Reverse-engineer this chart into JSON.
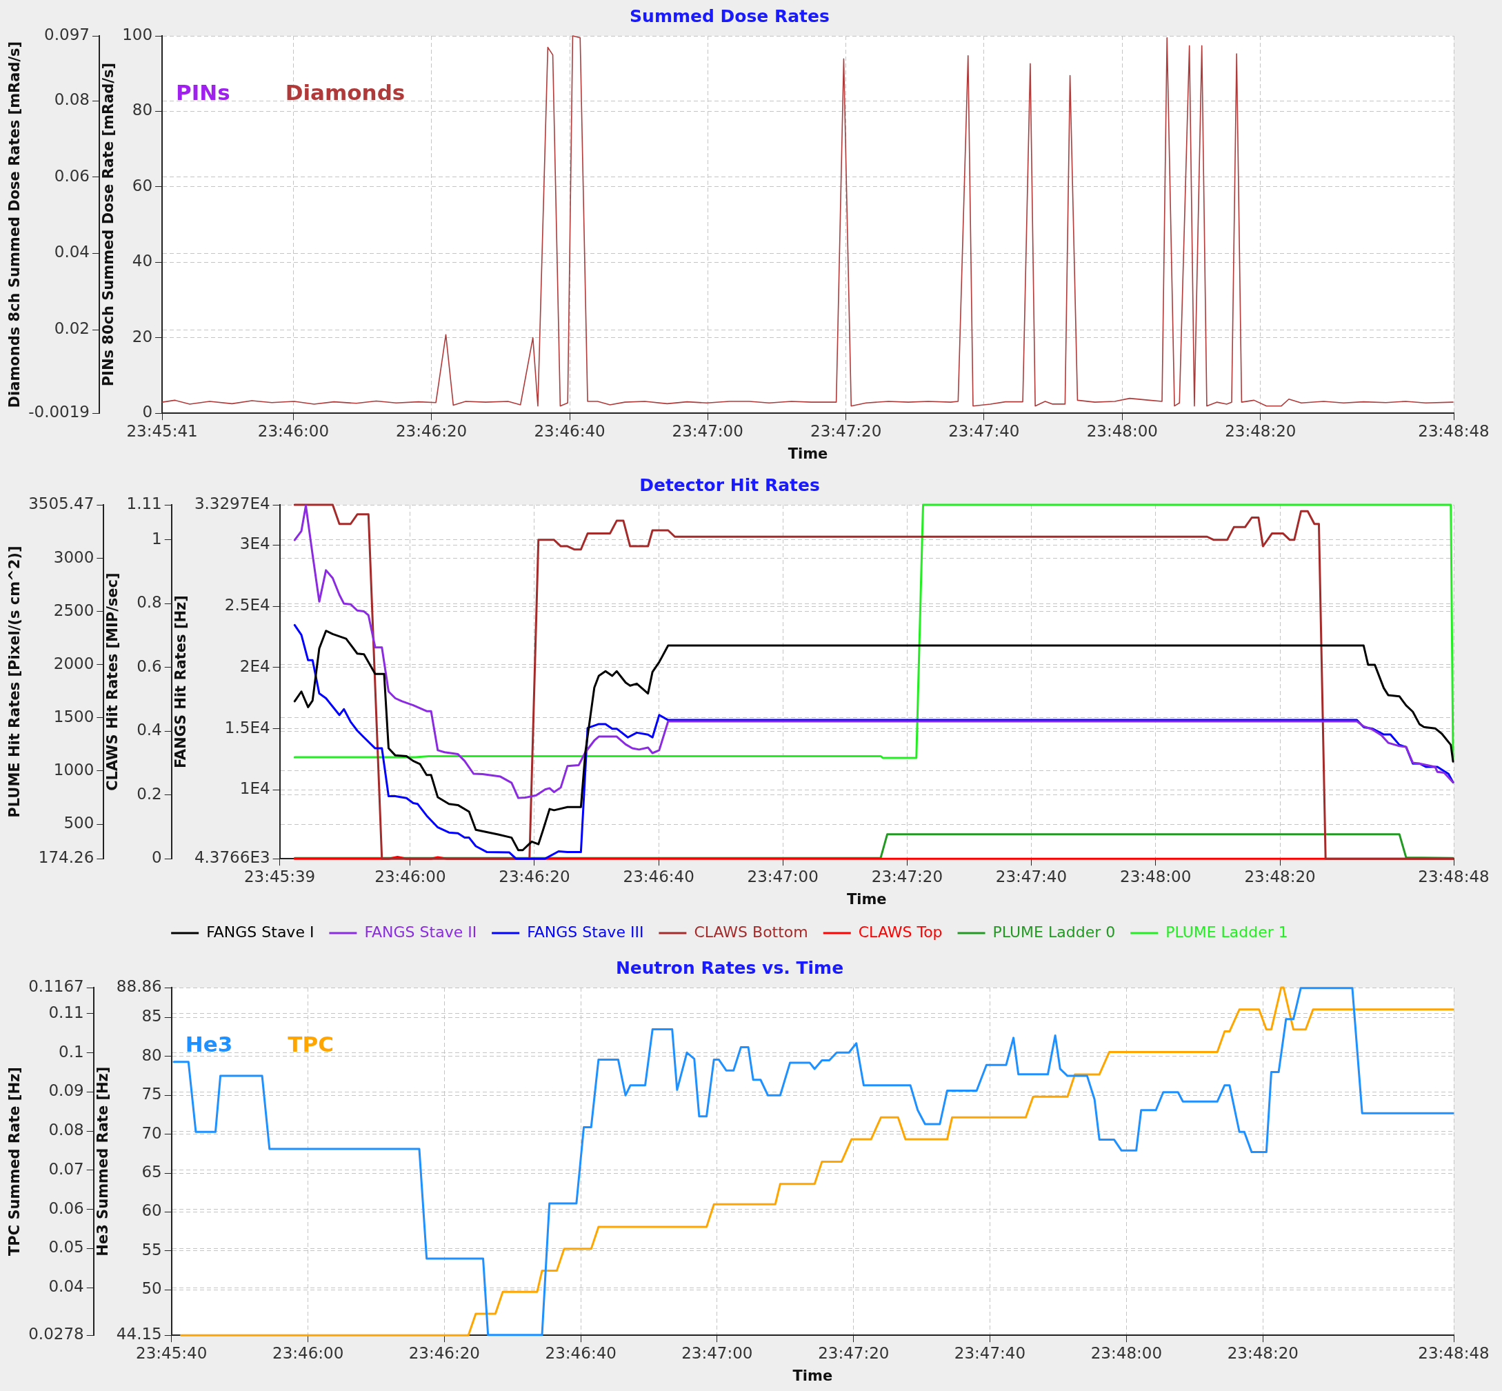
{
  "chart_data": [
    {
      "type": "line",
      "title": "Summed Dose Rates",
      "xlabel": "Time",
      "ylabel": "Diamonds 8ch Summed Dose Rates [mRad/s]",
      "y2label": "PINs 80ch Summed Dose Rate [mRad/s]",
      "xlim": [
        23.76139,
        23.81333
      ],
      "xticks": [
        {
          "value": 23.76139,
          "label": "23:45:41"
        },
        {
          "value": 23.76667,
          "label": "23:46:00"
        },
        {
          "value": 23.77222,
          "label": "23:46:20"
        },
        {
          "value": 23.77778,
          "label": "23:46:40"
        },
        {
          "value": 23.78333,
          "label": "23:47:00"
        },
        {
          "value": 23.78889,
          "label": "23:47:20"
        },
        {
          "value": 23.79444,
          "label": "23:47:40"
        },
        {
          "value": 23.8,
          "label": "23:48:00"
        },
        {
          "value": 23.80556,
          "label": "23:48:20"
        },
        {
          "value": 23.81333,
          "label": "23:48:48"
        }
      ],
      "ylim": [
        -0.0019,
        0.097
      ],
      "yticks": [
        -0.0019,
        0.02,
        0.04,
        0.06,
        0.08,
        0.097
      ],
      "y2lim": [
        0,
        100
      ],
      "y2ticks": [
        0,
        20,
        40,
        60,
        80,
        100
      ],
      "grid": true,
      "legend": "top left",
      "series": [
        {
          "name": "PINs",
          "color": "#a020f0",
          "axis": "y2"
        },
        {
          "name": "Diamonds",
          "color": "#b03a3a",
          "x": [
            23.7614,
            23.7619,
            23.7625,
            23.7633,
            23.7642,
            23.765,
            23.7658,
            23.7667,
            23.7675,
            23.7683,
            23.7692,
            23.77,
            23.7708,
            23.7717,
            23.7724,
            23.7728,
            23.7731,
            23.7736,
            23.7744,
            23.7753,
            23.7758,
            23.7763,
            23.7765,
            23.7769,
            23.7771,
            23.7774,
            23.7777,
            23.7779,
            23.7782,
            23.7785,
            23.7789,
            23.7794,
            23.78,
            23.7808,
            23.7817,
            23.7825,
            23.7833,
            23.7842,
            23.785,
            23.7858,
            23.7867,
            23.7875,
            23.7885,
            23.7888,
            23.7891,
            23.7897,
            23.7906,
            23.7914,
            23.7922,
            23.7931,
            23.7934,
            23.7938,
            23.794,
            23.7947,
            23.7953,
            23.796,
            23.7963,
            23.7965,
            23.7969,
            23.7972,
            23.7977,
            23.7979,
            23.7982,
            23.7989,
            23.7997,
            23.8003,
            23.8011,
            23.8016,
            23.8018,
            23.8021,
            23.8023,
            23.8027,
            23.8029,
            23.8032,
            23.8034,
            23.8038,
            23.8042,
            23.8044,
            23.8046,
            23.8048,
            23.8053,
            23.8058,
            23.8064,
            23.8067,
            23.8072,
            23.8081,
            23.8089,
            23.8097,
            23.8106,
            23.8114,
            23.8122,
            23.8133
          ],
          "values": [
            0.001,
            0.0015,
            0.0005,
            0.0012,
            0.0006,
            0.0014,
            0.0009,
            0.0012,
            0.0005,
            0.0011,
            0.0007,
            0.0013,
            0.0008,
            0.0011,
            0.0009,
            0.0187,
            0.0002,
            0.0012,
            0.001,
            0.0012,
            0.0003,
            0.0179,
            0,
            0.094,
            0.092,
            0,
            0.0008,
            0.097,
            0.0965,
            0.0012,
            0.0012,
            0.0003,
            0.001,
            0.0012,
            0.0006,
            0.0011,
            0.0008,
            0.0012,
            0.0012,
            0.0008,
            0.0012,
            0.001,
            0.001,
            0.091,
            0,
            0.0008,
            0.0012,
            0.001,
            0.0012,
            0.001,
            0.0012,
            0.0918,
            0,
            0.0005,
            0.0011,
            0.0011,
            0.0897,
            0,
            0.0012,
            0.0005,
            0.0005,
            0.0866,
            0.0015,
            0.001,
            0.0012,
            0.002,
            0.0015,
            0.0012,
            0.0965,
            0,
            0.0008,
            0.0944,
            0,
            0.0944,
            0,
            0.001,
            0.0005,
            0.001,
            0.0923,
            0.001,
            0.0015,
            0,
            0,
            0.0018,
            0.0008,
            0.0012,
            0.0008,
            0.0011,
            0.0009,
            0.0012,
            0.0008,
            0.001
          ]
        }
      ]
    },
    {
      "type": "line",
      "title": "Detector Hit Rates",
      "xlabel": "Time",
      "ylabel": "PLUME Hit Rates [Pixel/(s cm^2)]",
      "y2label": "CLAWS Hit Rates [MIP/sec]",
      "y3label": "FANGS Hit Rates [Hz]",
      "xlim": [
        23.76083,
        23.81333
      ],
      "xticks": [
        {
          "value": 23.76083,
          "label": "23:45:39"
        },
        {
          "value": 23.76667,
          "label": "23:46:00"
        },
        {
          "value": 23.77222,
          "label": "23:46:20"
        },
        {
          "value": 23.77778,
          "label": "23:46:40"
        },
        {
          "value": 23.78333,
          "label": "23:47:00"
        },
        {
          "value": 23.78889,
          "label": "23:47:20"
        },
        {
          "value": 23.79444,
          "label": "23:47:40"
        },
        {
          "value": 23.8,
          "label": "23:48:00"
        },
        {
          "value": 23.80556,
          "label": "23:48:20"
        },
        {
          "value": 23.81333,
          "label": "23:48:48"
        }
      ],
      "ylim": [
        174.26,
        3505.47
      ],
      "yticks": [
        174.26,
        500,
        1000,
        1500,
        2000,
        2500,
        3000,
        3505.47
      ],
      "y2lim": [
        0,
        1.11
      ],
      "y2ticks": [
        0,
        0.2,
        0.4,
        0.6,
        0.8,
        1,
        1.11
      ],
      "y3lim": [
        4376.6,
        33297
      ],
      "y3ticks": [
        {
          "value": 4376.6,
          "label": "4.3766E3"
        },
        {
          "value": 10000,
          "label": "1E4"
        },
        {
          "value": 15000,
          "label": "1.5E4"
        },
        {
          "value": 20000,
          "label": "2E4"
        },
        {
          "value": 25000,
          "label": "2.5E4"
        },
        {
          "value": 30000,
          "label": "3E4"
        },
        {
          "value": 33297,
          "label": "3.3297E4"
        }
      ],
      "grid": true,
      "legend": "bottom",
      "series": [
        {
          "name": "FANGS Stave I",
          "color": "#000000",
          "axis": "y3",
          "x": [
            23.7615,
            23.7618,
            23.7621,
            23.7623,
            23.7626,
            23.7629,
            23.7632,
            23.7638,
            23.7643,
            23.7646,
            23.7651,
            23.7655,
            23.7657,
            23.766,
            23.7665,
            23.7668,
            23.7671,
            23.7674,
            23.7676,
            23.7679,
            23.7684,
            23.7688,
            23.7693,
            23.7696,
            23.7706,
            23.7712,
            23.7715,
            23.7717,
            23.7721,
            23.7724,
            23.7726,
            23.7729,
            23.7731,
            23.7737,
            23.7743,
            23.7745,
            23.7749,
            23.7751,
            23.7754,
            23.7757,
            23.7759,
            23.7763,
            23.7765,
            23.7768,
            23.7773,
            23.7775,
            23.7778,
            23.7782,
            23.8093,
            23.8095,
            23.8098,
            23.8102,
            23.8104,
            23.8109,
            23.8112,
            23.8115,
            23.8118,
            23.812,
            23.8125,
            23.8128,
            23.8132,
            23.8133
          ],
          "values": [
            17240,
            18040,
            16760,
            17300,
            21560,
            23000,
            22740,
            22360,
            21140,
            21080,
            19480,
            19480,
            13400,
            12820,
            12760,
            12370,
            12120,
            11220,
            11220,
            9400,
            8850,
            8760,
            8220,
            6740,
            6360,
            6100,
            5080,
            5080,
            5780,
            5560,
            6680,
            8440,
            8340,
            8600,
            8600,
            13080,
            18360,
            19320,
            19700,
            19320,
            19700,
            18770,
            18520,
            18680,
            17880,
            19640,
            20440,
            21800,
            21800,
            20230,
            20230,
            18330,
            17750,
            17650,
            16900,
            16390,
            15370,
            15140,
            15030,
            14590,
            13680,
            12320
          ]
        },
        {
          "name": "FANGS Stave II",
          "color": "#8a2be2",
          "axis": "y3",
          "x": [
            23.7615,
            23.7618,
            23.762,
            23.7623,
            23.7626,
            23.7629,
            23.7632,
            23.7635,
            23.7637,
            23.764,
            23.7643,
            23.7646,
            23.7648,
            23.7651,
            23.7654,
            23.7657,
            23.766,
            23.7663,
            23.7668,
            23.7674,
            23.7676,
            23.7679,
            23.7682,
            23.7688,
            23.7691,
            23.7695,
            23.7699,
            23.7707,
            23.7712,
            23.7715,
            23.7718,
            23.7723,
            23.7727,
            23.7729,
            23.7731,
            23.7734,
            23.7737,
            23.7742,
            23.7745,
            23.7749,
            23.7751,
            23.7759,
            23.7763,
            23.7766,
            23.7769,
            23.7773,
            23.7775,
            23.7778,
            23.7782,
            23.809,
            23.8093,
            23.8097,
            23.8101,
            23.8104,
            23.8109,
            23.8112,
            23.8115,
            23.8118,
            23.8125,
            23.8126,
            23.8129,
            23.8133
          ],
          "values": [
            30420,
            31150,
            33230,
            29230,
            25390,
            27950,
            27310,
            25940,
            25230,
            25170,
            24660,
            24590,
            24270,
            21650,
            21650,
            18040,
            17490,
            17240,
            16920,
            16440,
            16440,
            13240,
            13080,
            12920,
            12370,
            11320,
            11290,
            11090,
            10580,
            9340,
            9370,
            9560,
            10040,
            10140,
            9820,
            10200,
            11960,
            12020,
            13080,
            14040,
            14360,
            14360,
            13720,
            13400,
            13300,
            13460,
            13010,
            13240,
            15600,
            15600,
            15200,
            14930,
            14460,
            13850,
            13580,
            13510,
            12220,
            12150,
            11880,
            11470,
            11400,
            10620
          ]
        },
        {
          "name": "FANGS Stave III",
          "color": "#0000ff",
          "axis": "y3",
          "x": [
            23.7615,
            23.7618,
            23.7621,
            23.7623,
            23.7626,
            23.7629,
            23.7635,
            23.7637,
            23.764,
            23.7643,
            23.7646,
            23.7651,
            23.7654,
            23.7657,
            23.766,
            23.7665,
            23.7668,
            23.767,
            23.7674,
            23.7679,
            23.7684,
            23.7688,
            23.7691,
            23.7693,
            23.7696,
            23.7701,
            23.7711,
            23.7714,
            23.7727,
            23.7733,
            23.7737,
            23.7743,
            23.7746,
            23.7751,
            23.7754,
            23.7757,
            23.7759,
            23.7764,
            23.7768,
            23.7773,
            23.7775,
            23.7778,
            23.7782,
            23.809,
            23.8093,
            23.8097,
            23.8102,
            23.8105,
            23.8109,
            23.8112,
            23.8115,
            23.8118,
            23.8121,
            23.8126,
            23.8131,
            23.8133
          ],
          "values": [
            23470,
            22670,
            20600,
            20600,
            17880,
            17490,
            16120,
            16600,
            15570,
            14840,
            14290,
            13400,
            13400,
            9490,
            9490,
            9330,
            8920,
            8850,
            7900,
            6940,
            6520,
            6460,
            6100,
            6100,
            5400,
            4920,
            4890,
            4380,
            4380,
            4980,
            4920,
            4920,
            15060,
            15380,
            15380,
            15000,
            15000,
            14290,
            14680,
            14520,
            14290,
            16120,
            15710,
            15710,
            15140,
            15000,
            14530,
            14530,
            13680,
            13510,
            12150,
            12150,
            11880,
            11880,
            11300,
            10620
          ]
        },
        {
          "name": "CLAWS Bottom",
          "color": "#a52a2a",
          "axis": "y2",
          "x": [
            23.7615,
            23.7632,
            23.7635,
            23.764,
            23.7643,
            23.7648,
            23.7654,
            23.772,
            23.7724,
            23.7731,
            23.7734,
            23.7737,
            23.774,
            23.7743,
            23.7746,
            23.7756,
            23.7759,
            23.7762,
            23.7765,
            23.7773,
            23.7775,
            23.7782,
            23.7785,
            23.8023,
            23.8026,
            23.8032,
            23.8035,
            23.804,
            23.8043,
            23.8046,
            23.8048,
            23.8052,
            23.8057,
            23.806,
            23.8062,
            23.8065,
            23.8068,
            23.8071,
            23.8073,
            23.8076,
            23.8133
          ],
          "values": [
            1.11,
            1.11,
            1.05,
            1.05,
            1.08,
            1.08,
            0,
            0,
            1,
            1,
            0.98,
            0.98,
            0.97,
            0.97,
            1.02,
            1.02,
            1.06,
            1.06,
            0.98,
            0.98,
            1.03,
            1.03,
            1.01,
            1.01,
            1,
            1,
            1.04,
            1.04,
            1.07,
            1.07,
            0.98,
            1.02,
            1.02,
            1,
            1,
            1.09,
            1.09,
            1.05,
            1.05,
            0,
            0
          ]
        },
        {
          "name": "CLAWS Top",
          "color": "#ff0000",
          "axis": "y2",
          "x": [
            23.7615,
            23.7657,
            23.7661,
            23.7665,
            23.7676,
            23.7679,
            23.7683,
            23.8133
          ],
          "values": [
            0,
            0,
            0.006,
            0,
            0,
            0.005,
            0,
            0
          ]
        },
        {
          "name": "PLUME Ladder 0",
          "color": "#229922",
          "x": [
            23.7615,
            23.7877,
            23.788,
            23.8109,
            23.8112,
            23.8133
          ],
          "values": [
            180,
            180,
            405,
            405,
            186,
            180
          ]
        },
        {
          "name": "PLUME Ladder 1",
          "color": "#22ee22",
          "x": [
            23.7615,
            23.7669,
            23.7675,
            23.7877,
            23.7878,
            23.7893,
            23.7896,
            23.8132,
            23.8133
          ],
          "values": [
            1130,
            1130,
            1140,
            1140,
            1124,
            1124,
            3505,
            3505,
            1110
          ]
        }
      ]
    },
    {
      "type": "line",
      "title": "Neutron Rates vs. Time",
      "xlabel": "Time",
      "ylabel": "TPC Summed Rate [Hz]",
      "y2label": "He3 Summed Rate [Hz]",
      "xlim": [
        23.76111,
        23.81333
      ],
      "xticks": [
        {
          "value": 23.76111,
          "label": "23:45:40"
        },
        {
          "value": 23.76667,
          "label": "23:46:00"
        },
        {
          "value": 23.77222,
          "label": "23:46:20"
        },
        {
          "value": 23.77778,
          "label": "23:46:40"
        },
        {
          "value": 23.78333,
          "label": "23:47:00"
        },
        {
          "value": 23.78889,
          "label": "23:47:20"
        },
        {
          "value": 23.79444,
          "label": "23:47:40"
        },
        {
          "value": 23.8,
          "label": "23:48:00"
        },
        {
          "value": 23.80556,
          "label": "23:48:20"
        },
        {
          "value": 23.81333,
          "label": "23:48:48"
        }
      ],
      "ylim": [
        0.0278,
        0.1167
      ],
      "yticks": [
        0.0278,
        0.04,
        0.05,
        0.06,
        0.07,
        0.08,
        0.09,
        0.1,
        0.11,
        0.1167
      ],
      "y2lim": [
        44.15,
        88.86
      ],
      "y2ticks": [
        44.15,
        50,
        55,
        60,
        65,
        70,
        75,
        80,
        85,
        88.86
      ],
      "grid": true,
      "legend": "top left",
      "series": [
        {
          "name": "He3",
          "color": "#1e90ff",
          "axis": "y2",
          "x": [
            23.7612,
            23.7618,
            23.7621,
            23.7629,
            23.7631,
            23.7648,
            23.7651,
            23.7712,
            23.7715,
            23.7738,
            23.774,
            23.7762,
            23.7765,
            23.7776,
            23.7779,
            23.7782,
            23.7785,
            23.7793,
            23.7796,
            23.7798,
            23.7804,
            23.7807,
            23.7815,
            23.7817,
            23.7821,
            23.7824,
            23.7826,
            23.7829,
            23.7832,
            23.7834,
            23.7837,
            23.784,
            23.7843,
            23.7846,
            23.7848,
            23.7851,
            23.7854,
            23.7859,
            23.7863,
            23.7871,
            23.7873,
            23.7876,
            23.7879,
            23.7882,
            23.7887,
            23.789,
            23.7893,
            23.7912,
            23.7915,
            23.7918,
            23.7924,
            23.7927,
            23.7939,
            23.7943,
            23.7951,
            23.7954,
            23.7956,
            23.7968,
            23.7971,
            23.7973,
            23.7976,
            23.7984,
            23.7987,
            23.7989,
            23.7995,
            23.7998,
            23.8004,
            23.8006,
            23.8012,
            23.8015,
            23.8021,
            23.8023,
            23.8037,
            23.804,
            23.8042,
            23.8046,
            23.8048,
            23.8051,
            23.8057,
            23.8059,
            23.8062,
            23.8065,
            23.8068,
            23.8071,
            23.8092,
            23.8096,
            23.8133
          ],
          "values": [
            79.3,
            79.3,
            70.3,
            70.3,
            77.5,
            77.5,
            68.1,
            68.1,
            54.0,
            54.0,
            44.2,
            44.2,
            61.1,
            61.1,
            70.9,
            70.9,
            79.6,
            79.6,
            75.0,
            76.3,
            76.3,
            83.5,
            83.5,
            75.7,
            80.5,
            79.7,
            72.3,
            72.3,
            79.6,
            79.6,
            78.2,
            78.2,
            81.2,
            81.2,
            77.0,
            77.0,
            75.0,
            75.0,
            79.2,
            79.2,
            78.4,
            79.5,
            79.5,
            80.5,
            80.5,
            81.7,
            76.3,
            76.3,
            73.1,
            71.3,
            71.3,
            75.6,
            75.6,
            78.9,
            78.9,
            82.4,
            77.7,
            77.7,
            82.7,
            78.4,
            77.5,
            77.5,
            74.5,
            69.3,
            69.3,
            67.9,
            67.9,
            73.1,
            73.1,
            75.4,
            75.4,
            74.2,
            74.2,
            76.3,
            76.3,
            70.3,
            70.3,
            67.7,
            67.7,
            78.0,
            78.0,
            84.8,
            84.8,
            88.8,
            88.8,
            72.7,
            72.7
          ]
        },
        {
          "name": "TPC",
          "color": "#ffa500",
          "x": [
            23.7615,
            23.7732,
            23.7735,
            23.7743,
            23.7746,
            23.776,
            23.7762,
            23.7768,
            23.7771,
            23.7782,
            23.7785,
            23.7829,
            23.7832,
            23.7857,
            23.7859,
            23.7873,
            23.7876,
            23.7884,
            23.7888,
            23.7896,
            23.79,
            23.7907,
            23.791,
            23.7927,
            23.7929,
            23.7959,
            23.7962,
            23.7976,
            23.7979,
            23.7989,
            23.7993,
            23.8037,
            23.804,
            23.8042,
            23.8046,
            23.8054,
            23.8057,
            23.8059,
            23.8063,
            23.8064,
            23.8068,
            23.8073,
            23.8076,
            23.8133
          ],
          "values": [
            0.0278,
            0.0278,
            0.0333,
            0.0333,
            0.0389,
            0.0389,
            0.0443,
            0.0443,
            0.0499,
            0.0499,
            0.0555,
            0.0555,
            0.0613,
            0.0613,
            0.0665,
            0.0665,
            0.0722,
            0.0722,
            0.0779,
            0.0779,
            0.0835,
            0.0835,
            0.0779,
            0.0779,
            0.0835,
            0.0835,
            0.0888,
            0.0888,
            0.0945,
            0.0945,
            0.1002,
            0.1002,
            0.1055,
            0.1055,
            0.1111,
            0.1111,
            0.106,
            0.106,
            0.1167,
            0.1167,
            0.106,
            0.106,
            0.1111,
            0.1111
          ]
        }
      ]
    }
  ]
}
